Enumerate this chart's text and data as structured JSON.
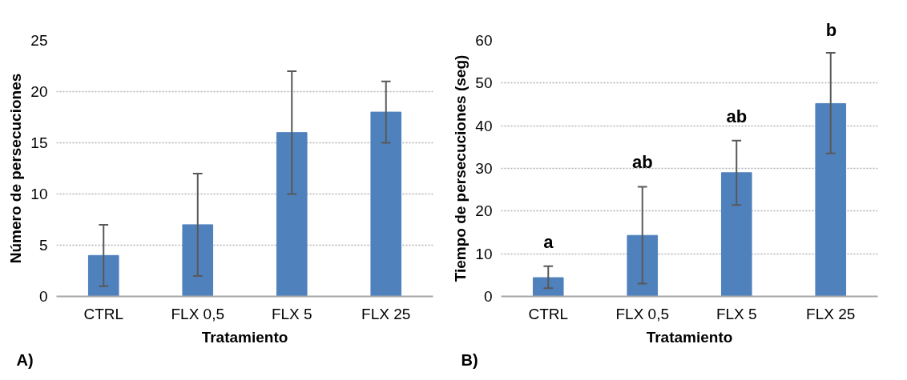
{
  "chart_data": [
    {
      "type": "bar",
      "xlabel": "Tratamiento",
      "ylabel": "Número de persecuciones",
      "categories": [
        "CTRL",
        "FLX 0,5",
        "FLX 5",
        "FLX 25"
      ],
      "series": [
        {
          "color": "#4f81bd",
          "values": [
            4,
            7,
            16,
            18
          ],
          "errors": [
            [
              1,
              7
            ],
            [
              2,
              12
            ],
            [
              10,
              22
            ],
            [
              15,
              21
            ]
          ]
        }
      ],
      "ylim": [
        0,
        25
      ],
      "yticks": [
        0,
        5,
        10,
        15,
        20,
        25
      ],
      "grid": "y",
      "annotations": [
        "A)"
      ]
    },
    {
      "type": "bar",
      "xlabel": "Tratamiento",
      "ylabel": "Tiempo de persecuciones (seg)",
      "categories": [
        "CTRL",
        "FLX 0,5",
        "FLX 5",
        "FLX 25"
      ],
      "series": [
        {
          "color": "#4f81bd",
          "values": [
            4.4,
            14.3,
            29.0,
            45.2
          ],
          "errors": [
            [
              1.9,
              7.1
            ],
            [
              3.0,
              25.7
            ],
            [
              21.4,
              36.5
            ],
            [
              33.5,
              57.1
            ]
          ]
        }
      ],
      "ylim": [
        0,
        60
      ],
      "yticks": [
        0,
        10,
        20,
        30,
        40,
        50,
        60
      ],
      "grid": "y",
      "annotations": [
        "B)",
        "a",
        "ab",
        "ab",
        "b"
      ]
    }
  ]
}
